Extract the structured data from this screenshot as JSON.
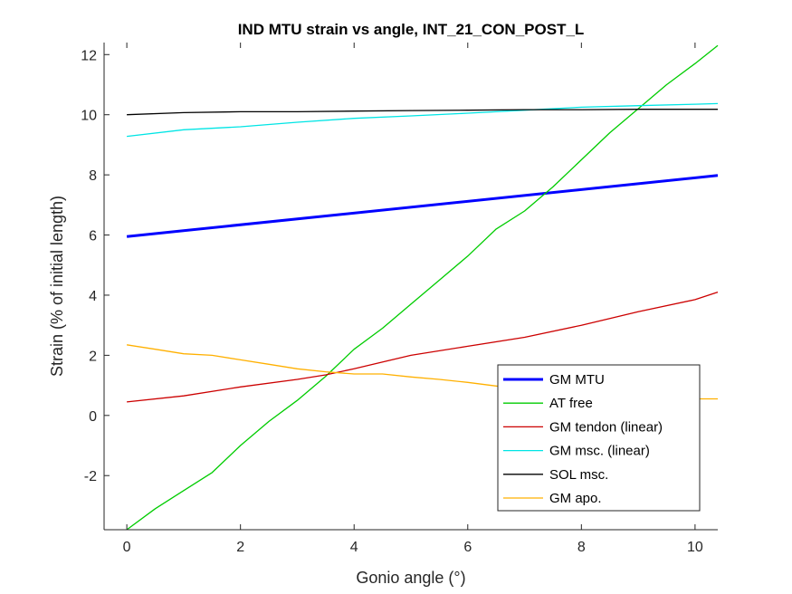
{
  "chart_data": {
    "type": "line",
    "title": "IND MTU strain vs angle, INT_21_CON_POST_L",
    "xlabel": "Gonio angle (°)",
    "ylabel": "Strain (% of initial length)",
    "xlim": [
      -0.4,
      10.4
    ],
    "ylim": [
      -3.8,
      12.4
    ],
    "xticks": [
      0,
      2,
      4,
      6,
      8,
      10
    ],
    "yticks": [
      -2,
      0,
      2,
      4,
      6,
      8,
      10,
      12
    ],
    "grid": false,
    "legend_position": "bottom-right",
    "series": [
      {
        "name": "GM MTU",
        "color": "#0000ff",
        "x": [
          0,
          10.4
        ],
        "y": [
          5.95,
          7.98
        ]
      },
      {
        "name": "AT free",
        "color": "#00cc00",
        "x": [
          0,
          0.5,
          1.0,
          1.5,
          2.0,
          2.5,
          3.0,
          3.5,
          4.0,
          4.5,
          5.0,
          5.5,
          6.0,
          6.5,
          7.0,
          7.5,
          8.0,
          8.5,
          9.0,
          9.5,
          10.0,
          10.4
        ],
        "y": [
          -3.8,
          -3.1,
          -2.5,
          -1.9,
          -1.0,
          -0.2,
          0.5,
          1.3,
          2.2,
          2.9,
          3.7,
          4.5,
          5.3,
          6.2,
          6.8,
          7.6,
          8.5,
          9.4,
          10.2,
          11.0,
          11.7,
          12.3
        ]
      },
      {
        "name": "GM tendon (linear)",
        "color": "#cc0000",
        "x": [
          0,
          1,
          2,
          3,
          3.5,
          4,
          5,
          6,
          7,
          8,
          9,
          10,
          10.4
        ],
        "y": [
          0.45,
          0.65,
          0.95,
          1.2,
          1.35,
          1.55,
          2.0,
          2.3,
          2.6,
          3.0,
          3.45,
          3.85,
          4.1
        ]
      },
      {
        "name": "GM msc. (linear)",
        "color": "#00e5e5",
        "x": [
          0,
          1,
          2,
          3,
          4,
          5,
          6,
          7,
          8,
          9,
          10,
          10.4
        ],
        "y": [
          9.28,
          9.5,
          9.6,
          9.75,
          9.88,
          9.96,
          10.05,
          10.15,
          10.25,
          10.3,
          10.35,
          10.37
        ]
      },
      {
        "name": "SOL msc.",
        "color": "#000000",
        "x": [
          0,
          1,
          2,
          3,
          4,
          5,
          6,
          7,
          8,
          9,
          10,
          10.4
        ],
        "y": [
          10.0,
          10.07,
          10.1,
          10.1,
          10.12,
          10.14,
          10.15,
          10.17,
          10.17,
          10.18,
          10.18,
          10.18
        ]
      },
      {
        "name": "GM apo.",
        "color": "#ffb000",
        "x": [
          0,
          0.5,
          1.0,
          1.5,
          2.0,
          2.5,
          3.0,
          3.5,
          4.0,
          4.5,
          5.0,
          5.5,
          6.0,
          6.5,
          7.0,
          7.5,
          8.0,
          8.5,
          9.0,
          9.5,
          10.0,
          10.4
        ],
        "y": [
          2.35,
          2.2,
          2.05,
          2.0,
          1.85,
          1.7,
          1.55,
          1.45,
          1.38,
          1.38,
          1.28,
          1.2,
          1.1,
          0.98,
          0.85,
          0.75,
          0.7,
          0.65,
          0.6,
          0.58,
          0.55,
          0.55
        ]
      }
    ]
  }
}
